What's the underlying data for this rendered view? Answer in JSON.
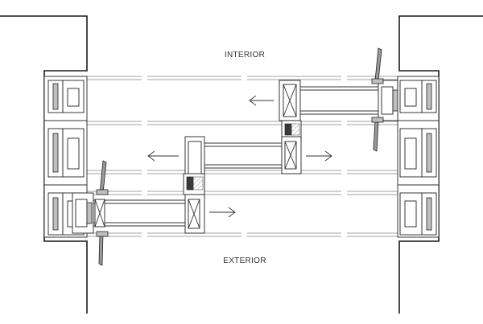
{
  "diagram": {
    "interior_label": "INTERIOR",
    "exterior_label": "EXTERIOR"
  }
}
